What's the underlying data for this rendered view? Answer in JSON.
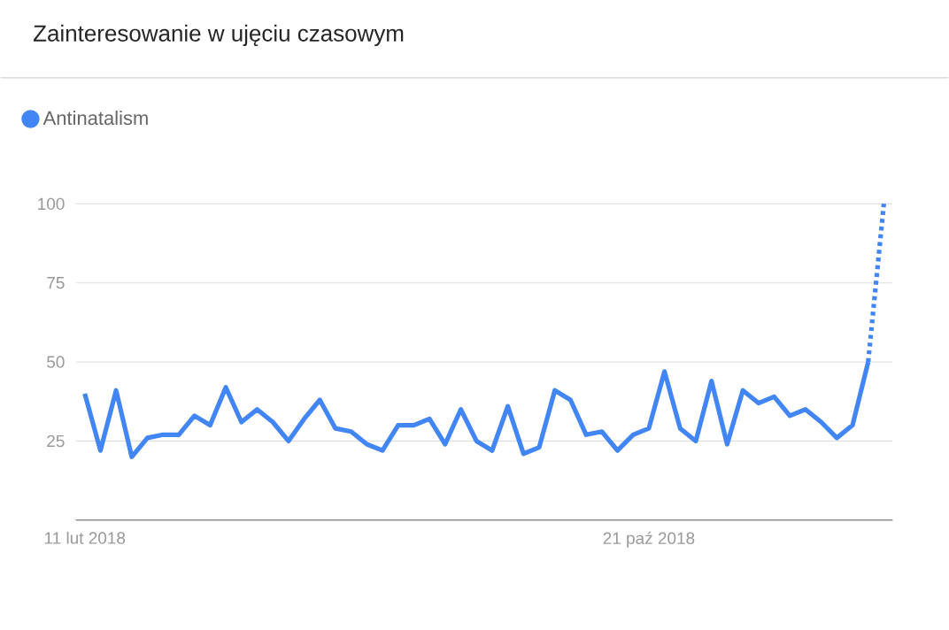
{
  "chart_data": {
    "type": "line",
    "title": "Zainteresowanie w ujęciu czasowym",
    "categories": [
      "11 lut 2018",
      null,
      null,
      null,
      null,
      null,
      null,
      null,
      null,
      null,
      null,
      null,
      null,
      null,
      null,
      null,
      null,
      null,
      null,
      null,
      null,
      null,
      null,
      null,
      null,
      null,
      null,
      null,
      null,
      null,
      null,
      null,
      null,
      null,
      null,
      null,
      "21 paź 2018",
      null,
      null,
      null,
      null,
      null,
      null,
      null,
      null,
      null,
      null,
      null,
      null,
      null,
      null,
      null
    ],
    "series": [
      {
        "name": "Antinatalism",
        "color": "#4285f4",
        "line_style": "solid",
        "values": [
          40,
          22,
          41,
          20,
          26,
          27,
          27,
          33,
          30,
          42,
          31,
          35,
          31,
          25,
          32,
          38,
          29,
          28,
          24,
          22,
          30,
          30,
          32,
          24,
          35,
          25,
          22,
          36,
          21,
          23,
          41,
          38,
          27,
          28,
          22,
          27,
          29,
          47,
          29,
          25,
          44,
          24,
          41,
          37,
          39,
          33,
          35,
          31,
          26,
          30,
          50,
          null
        ]
      },
      {
        "color": "#4285f4",
        "line_style": "dotted",
        "values": [
          null,
          null,
          null,
          null,
          null,
          null,
          null,
          null,
          null,
          null,
          null,
          null,
          null,
          null,
          null,
          null,
          null,
          null,
          null,
          null,
          null,
          null,
          null,
          null,
          null,
          null,
          null,
          null,
          null,
          null,
          null,
          null,
          null,
          null,
          null,
          null,
          null,
          null,
          null,
          null,
          null,
          null,
          null,
          null,
          null,
          null,
          null,
          null,
          null,
          null,
          50,
          100
        ]
      }
    ],
    "ylim": [
      0,
      100
    ],
    "yticks": [
      25,
      50,
      75,
      100
    ],
    "grid": "y",
    "legend": "top left",
    "marker": "none"
  }
}
